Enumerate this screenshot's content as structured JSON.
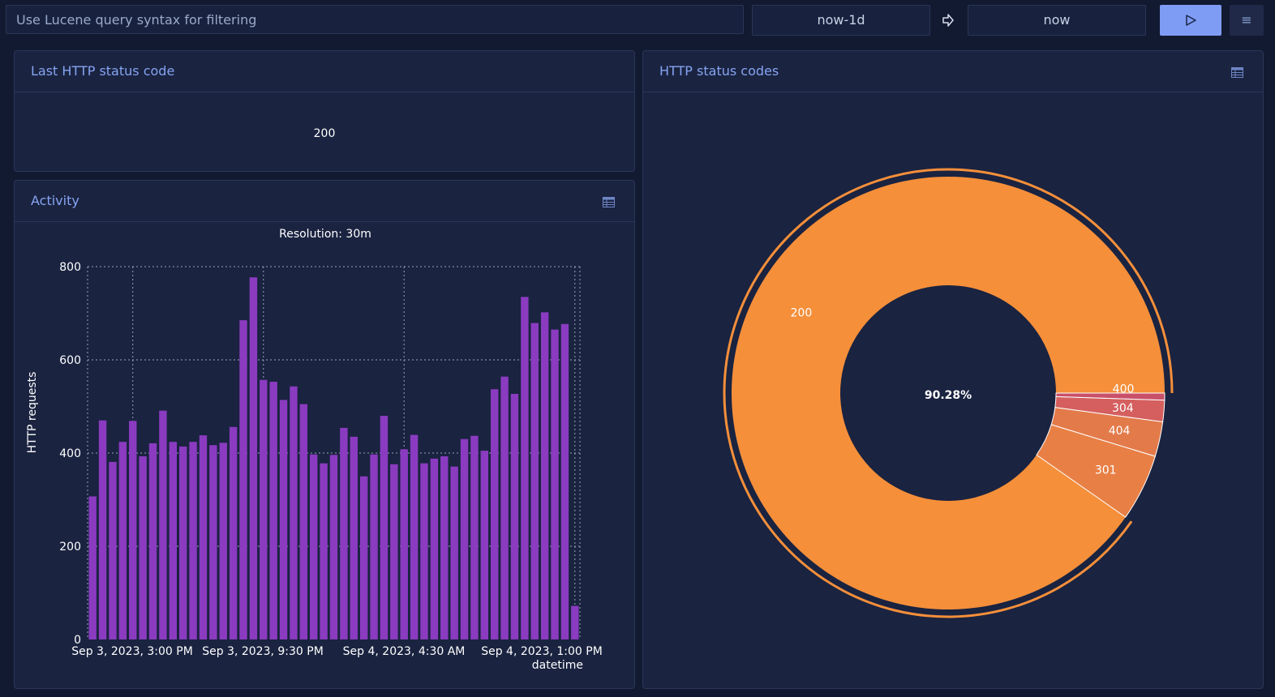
{
  "toolbar": {
    "query_placeholder": "Use Lucene query syntax for filtering",
    "time_from": "now-1d",
    "time_to": "now",
    "arrow_icon": "arrow-right-icon",
    "run_icon": "play-icon",
    "menu_icon": "hamburger-icon",
    "menu_glyph": "≡"
  },
  "panels": {
    "last_status": {
      "title": "Last HTTP status code",
      "value": "200"
    },
    "activity": {
      "title": "Activity",
      "resolution": "Resolution: 30m",
      "icon": "table-icon"
    },
    "status_codes": {
      "title": "HTTP status codes",
      "icon": "table-icon",
      "center_label": "90.28%"
    }
  },
  "colors": {
    "bar": "#8a3bc0",
    "orange": "#f58f3a",
    "slice_301": "#e88046",
    "slice_404": "#e37a4a",
    "slice_304": "#d45f5e",
    "slice_400": "#c9506a",
    "accent": "#7f9cf5"
  },
  "chart_data": [
    {
      "type": "bar",
      "title": "Resolution: 30m",
      "xlabel": "datetime",
      "ylabel": "HTTP requests",
      "ylim": [
        0,
        800
      ],
      "yticks": [
        0,
        200,
        400,
        600,
        800
      ],
      "xtick_labels": [
        "Sep 3, 2023, 3:00 PM",
        "Sep 3, 2023, 9:30 PM",
        "Sep 4, 2023, 4:30 AM",
        "Sep 4, 2023, 1:00 PM"
      ],
      "grid": true,
      "values": [
        307,
        470,
        381,
        424,
        469,
        393,
        421,
        491,
        424,
        414,
        424,
        438,
        417,
        422,
        456,
        685,
        777,
        557,
        553,
        514,
        543,
        505,
        397,
        378,
        396,
        454,
        435,
        350,
        397,
        480,
        376,
        408,
        439,
        378,
        388,
        393,
        371,
        430,
        437,
        405,
        537,
        564,
        527,
        735,
        679,
        702,
        665,
        677,
        72
      ]
    },
    {
      "type": "pie",
      "title": "HTTP status codes",
      "hole": true,
      "labels": [
        "200",
        "301",
        "404",
        "304",
        "400"
      ],
      "values": [
        90.28,
        5.0,
        2.6,
        1.6,
        0.52
      ],
      "center_text": "90.28%"
    }
  ]
}
